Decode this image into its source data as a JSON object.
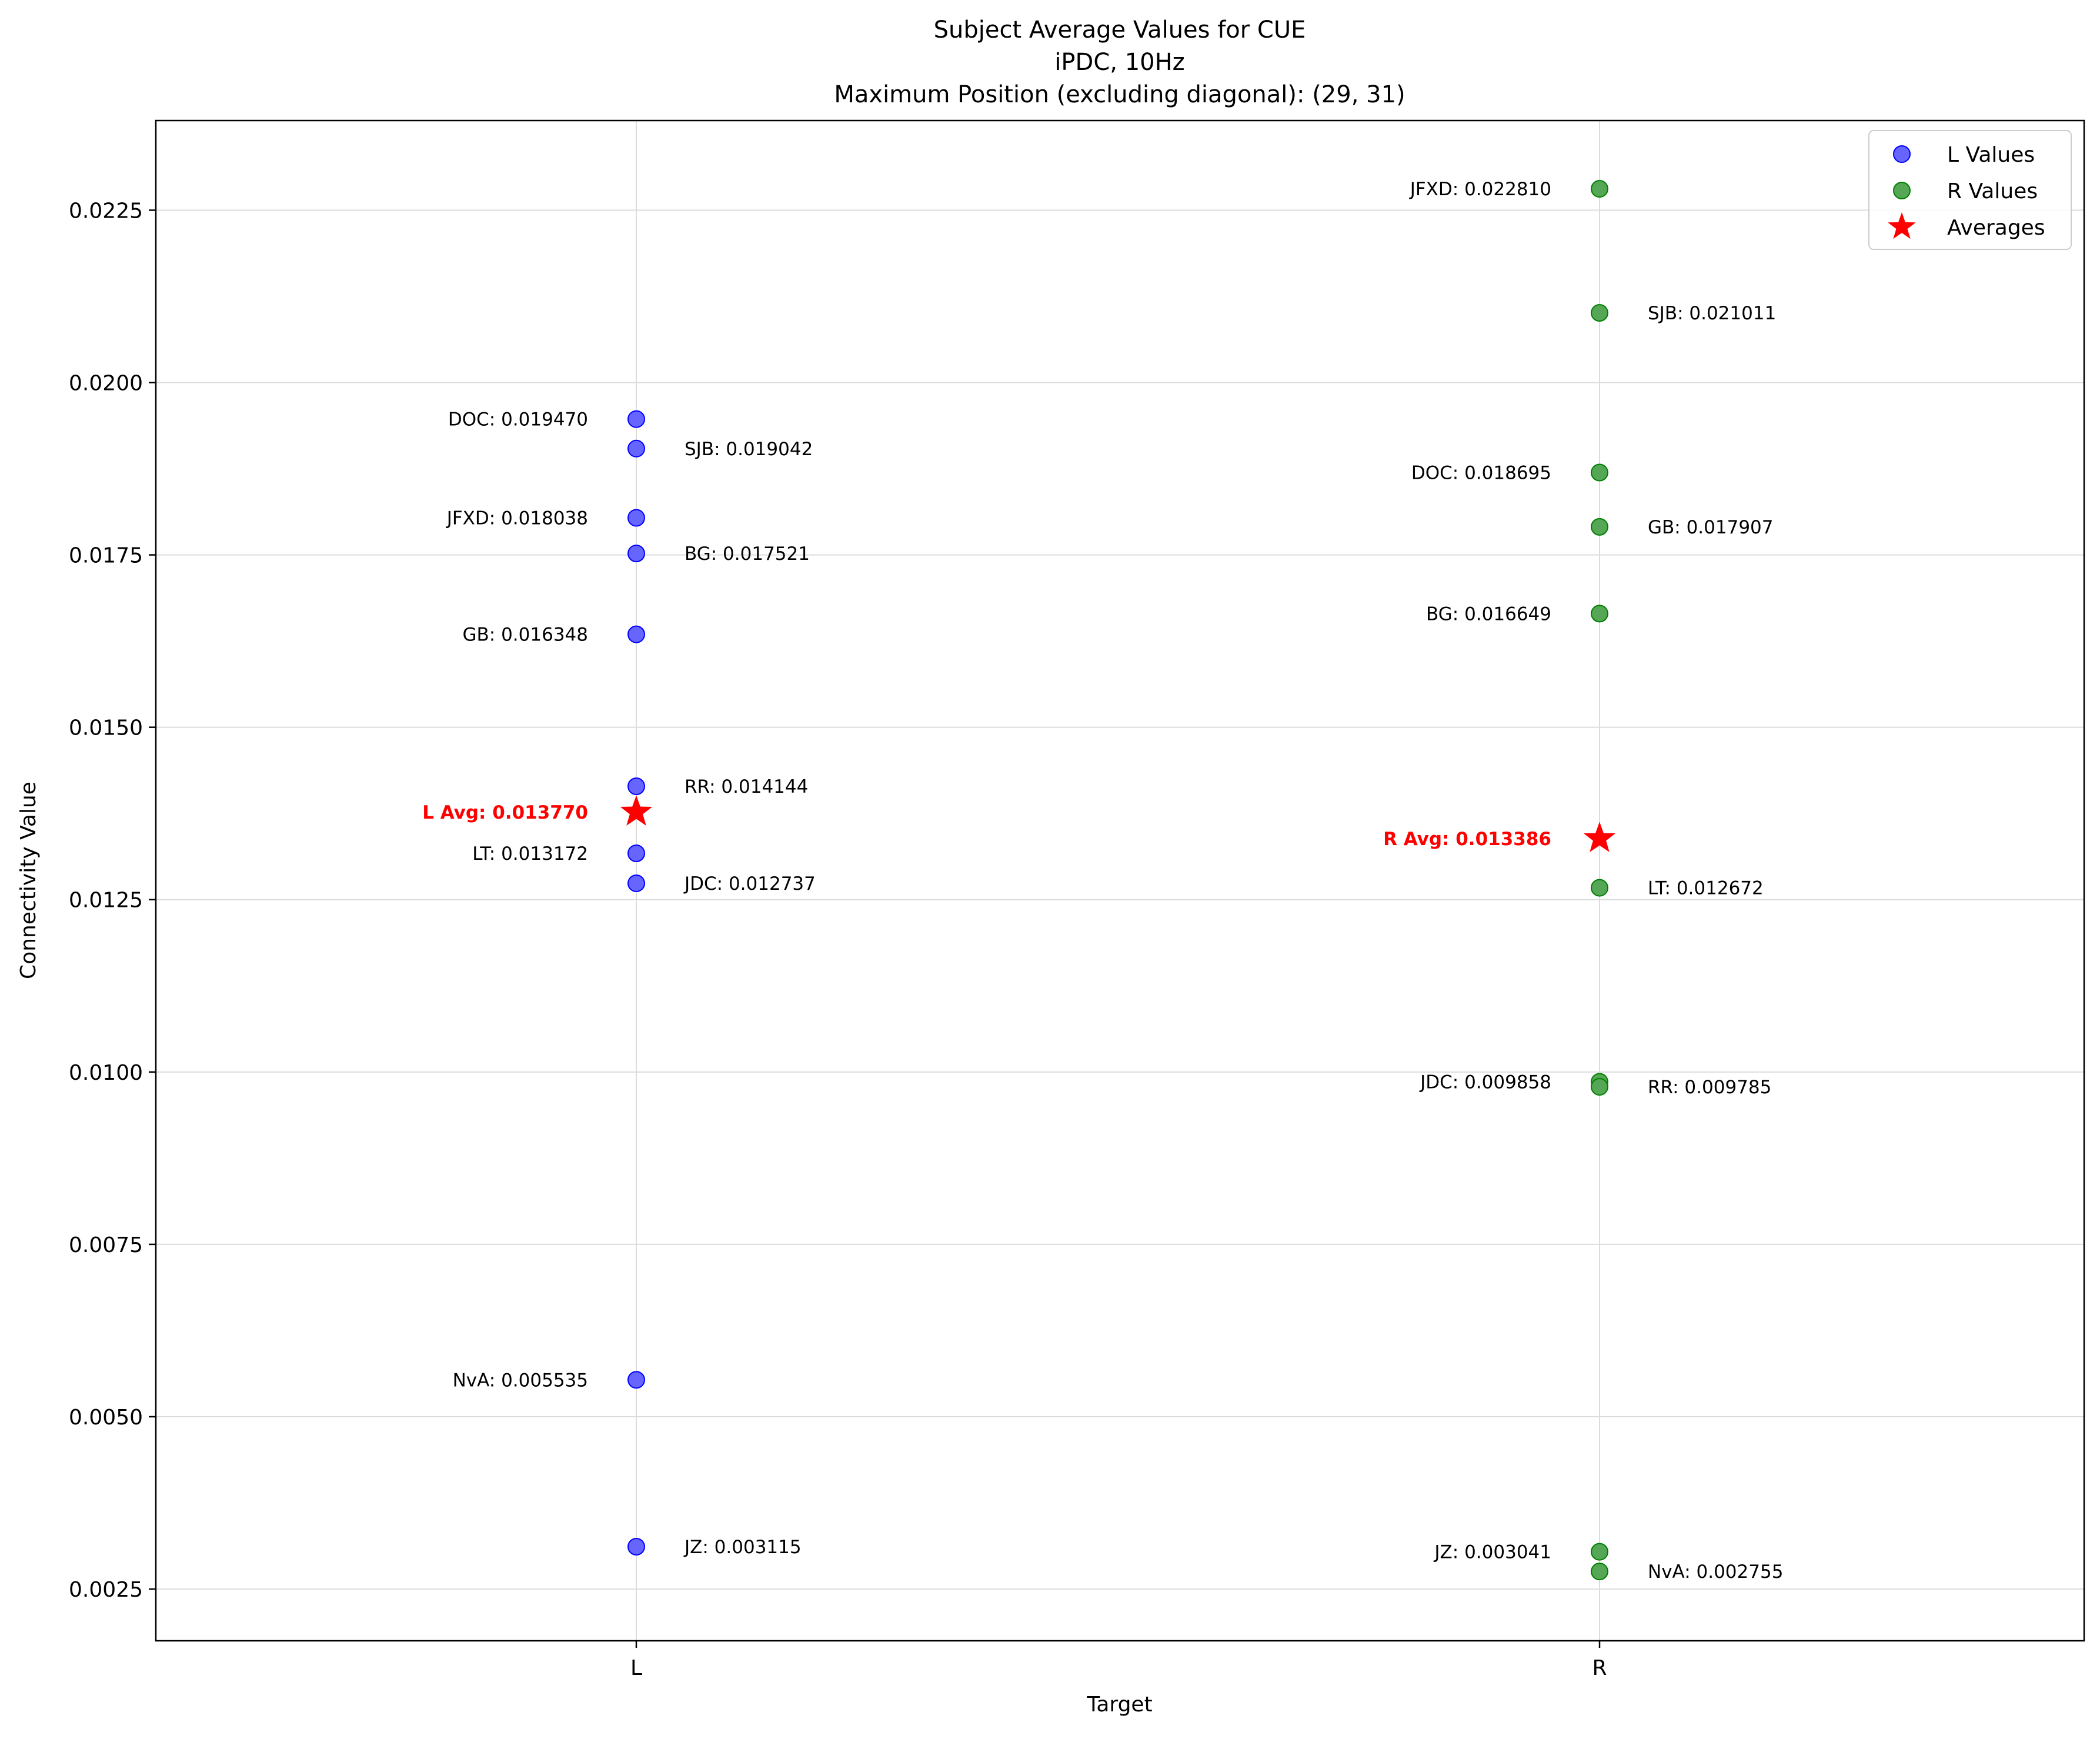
{
  "chart_data": {
    "type": "scatter",
    "title": "Subject Average Values for CUE",
    "subtitle_lines": [
      "iPDC, 10Hz",
      "Maximum Position (excluding diagonal): (29, 31)"
    ],
    "xlabel": "Target",
    "ylabel": "Connectivity Value",
    "categories": [
      "L",
      "R"
    ],
    "ylim": [
      0.00175,
      0.0238
    ],
    "yticks": [
      0.0025,
      0.005,
      0.0075,
      0.01,
      0.0125,
      0.015,
      0.0175,
      0.02,
      0.0225
    ],
    "ytick_labels": [
      "0.0025",
      "0.0050",
      "0.0075",
      "0.0100",
      "0.0125",
      "0.0150",
      "0.0175",
      "0.0200",
      "0.0225"
    ],
    "grid": true,
    "legend_position": "top-right",
    "colors": {
      "L": "#0000ff",
      "R": "#008000",
      "avg": "#ff0000"
    },
    "series": [
      {
        "name": "L Values",
        "category": "L",
        "points": [
          {
            "subject": "DOC",
            "value": 0.01947,
            "label": "DOC: 0.019470",
            "side": "left"
          },
          {
            "subject": "SJB",
            "value": 0.019042,
            "label": "SJB: 0.019042",
            "side": "right"
          },
          {
            "subject": "JFXD",
            "value": 0.018038,
            "label": "JFXD: 0.018038",
            "side": "left"
          },
          {
            "subject": "BG",
            "value": 0.017521,
            "label": "BG: 0.017521",
            "side": "right"
          },
          {
            "subject": "GB",
            "value": 0.016348,
            "label": "GB: 0.016348",
            "side": "left"
          },
          {
            "subject": "RR",
            "value": 0.014144,
            "label": "RR: 0.014144",
            "side": "right"
          },
          {
            "subject": "LT",
            "value": 0.013172,
            "label": "LT: 0.013172",
            "side": "left"
          },
          {
            "subject": "JDC",
            "value": 0.012737,
            "label": "JDC: 0.012737",
            "side": "right"
          },
          {
            "subject": "NvA",
            "value": 0.005535,
            "label": "NvA: 0.005535",
            "side": "left"
          },
          {
            "subject": "JZ",
            "value": 0.003115,
            "label": "JZ: 0.003115",
            "side": "right"
          }
        ]
      },
      {
        "name": "R Values",
        "category": "R",
        "points": [
          {
            "subject": "JFXD",
            "value": 0.02281,
            "label": "JFXD: 0.022810",
            "side": "left"
          },
          {
            "subject": "SJB",
            "value": 0.021011,
            "label": "SJB: 0.021011",
            "side": "right"
          },
          {
            "subject": "DOC",
            "value": 0.018695,
            "label": "DOC: 0.018695",
            "side": "left"
          },
          {
            "subject": "GB",
            "value": 0.017907,
            "label": "GB: 0.017907",
            "side": "right"
          },
          {
            "subject": "BG",
            "value": 0.016649,
            "label": "BG: 0.016649",
            "side": "left"
          },
          {
            "subject": "LT",
            "value": 0.012672,
            "label": "LT: 0.012672",
            "side": "right"
          },
          {
            "subject": "JDC",
            "value": 0.009858,
            "label": "JDC: 0.009858",
            "side": "left"
          },
          {
            "subject": "RR",
            "value": 0.009785,
            "label": "RR: 0.009785",
            "side": "right"
          },
          {
            "subject": "JZ",
            "value": 0.003041,
            "label": "JZ: 0.003041",
            "side": "left"
          },
          {
            "subject": "NvA",
            "value": 0.002755,
            "label": "NvA: 0.002755",
            "side": "right"
          }
        ]
      }
    ],
    "averages": {
      "name": "Averages",
      "points": [
        {
          "category": "L",
          "value": 0.01377,
          "label": "L Avg: 0.013770"
        },
        {
          "category": "R",
          "value": 0.013386,
          "label": "R Avg: 0.013386"
        }
      ]
    },
    "legend": [
      {
        "label": "L Values",
        "marker": "circle",
        "color": "#0000ff"
      },
      {
        "label": "R Values",
        "marker": "circle",
        "color": "#008000"
      },
      {
        "label": "Averages",
        "marker": "star",
        "color": "#ff0000"
      }
    ]
  }
}
